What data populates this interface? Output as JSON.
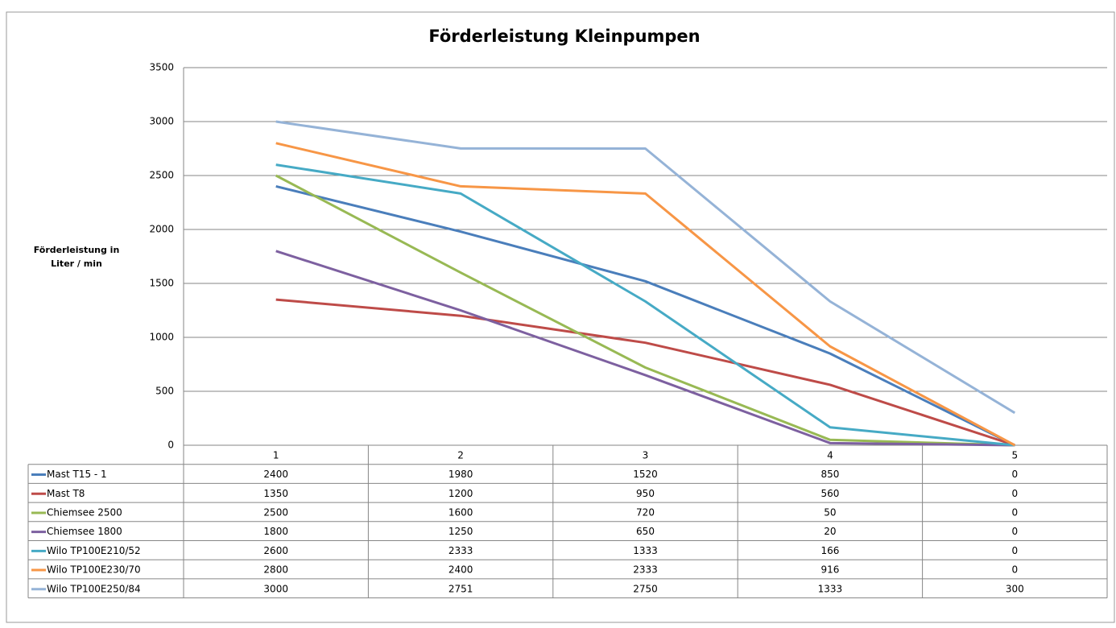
{
  "chart_data": {
    "type": "line",
    "title": "Förderleistung Kleinpumpen",
    "y_label": [
      "Förderleistung in",
      "Liter / min"
    ],
    "categories": [
      "1",
      "2",
      "3",
      "4",
      "5"
    ],
    "ylim": [
      0,
      3500
    ],
    "yticks": [
      0,
      500,
      1000,
      1500,
      2000,
      2500,
      3000,
      3500
    ],
    "grid": true,
    "series": [
      {
        "name": "Mast T15 - 1",
        "color": "#4a7ebb",
        "values": [
          2400,
          1980,
          1520,
          850,
          0
        ]
      },
      {
        "name": "Mast T8",
        "color": "#be4b48",
        "values": [
          1350,
          1200,
          950,
          560,
          0
        ]
      },
      {
        "name": "Chiemsee 2500",
        "color": "#98b954",
        "values": [
          2500,
          1600,
          720,
          50,
          0
        ]
      },
      {
        "name": "Chiemsee 1800",
        "color": "#7d60a0",
        "values": [
          1800,
          1250,
          650,
          20,
          0
        ]
      },
      {
        "name": "Wilo TP100E210/52",
        "color": "#46aac5",
        "values": [
          2600,
          2333,
          1333,
          166,
          0
        ]
      },
      {
        "name": "Wilo TP100E230/70",
        "color": "#f79646",
        "values": [
          2800,
          2400,
          2333,
          916,
          0
        ]
      },
      {
        "name": "Wilo TP100E250/84",
        "color": "#95b3d7",
        "values": [
          3000,
          2751,
          2750,
          1333,
          300
        ]
      }
    ]
  }
}
